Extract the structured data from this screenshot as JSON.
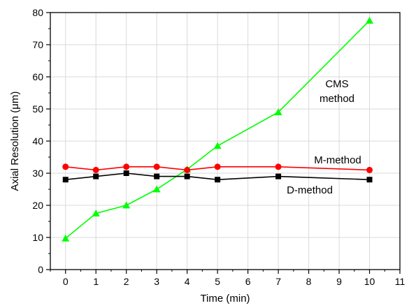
{
  "chart_data": {
    "type": "line",
    "xlabel": "Time (min)",
    "ylabel_prefix": "Axial Resolution (",
    "ylabel_mu": "μ",
    "ylabel_suffix": "m)",
    "xlim": [
      -0.5,
      11
    ],
    "ylim": [
      0,
      80
    ],
    "xticks": [
      0,
      1,
      2,
      3,
      4,
      5,
      6,
      7,
      8,
      9,
      10,
      11
    ],
    "yticks": [
      0,
      10,
      20,
      30,
      40,
      50,
      60,
      70,
      80
    ],
    "grid": true,
    "series": [
      {
        "name": "CMS method",
        "label_lines": [
          "CMS",
          "method"
        ],
        "color": "#00ff00",
        "marker": "triangle",
        "x": [
          0,
          1,
          2,
          3,
          4,
          5,
          7,
          10
        ],
        "y": [
          9.7,
          17.5,
          20,
          25,
          31.2,
          38.5,
          49,
          77.5
        ]
      },
      {
        "name": "M-method",
        "label_lines": [
          "M-method"
        ],
        "color": "#ff0000",
        "marker": "circle",
        "x": [
          0,
          1,
          2,
          3,
          4,
          5,
          7,
          10
        ],
        "y": [
          32,
          31,
          32,
          32,
          31,
          32,
          32,
          31
        ]
      },
      {
        "name": "D-method",
        "label_lines": [
          "D-method"
        ],
        "color": "#000000",
        "marker": "square",
        "x": [
          0,
          1,
          2,
          3,
          4,
          5,
          7,
          10
        ],
        "y": [
          28,
          29,
          30,
          29,
          29,
          28,
          29,
          28
        ]
      }
    ]
  }
}
